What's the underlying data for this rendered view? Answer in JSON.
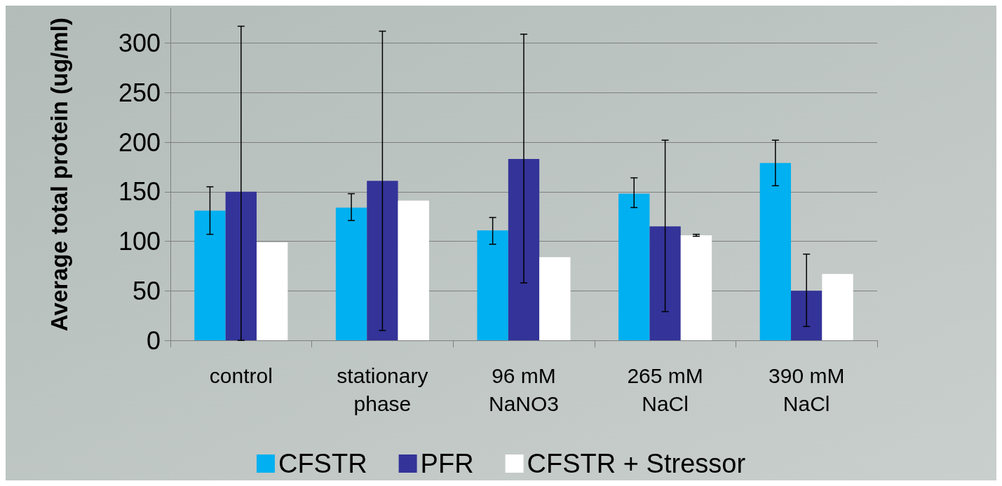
{
  "chart_data": {
    "type": "bar",
    "ylabel": "Average total protein (ug/ml)",
    "categories": [
      "control",
      "stationary phase",
      "96 mM NaNO3",
      "265 mM NaCl",
      "390 mM NaCl"
    ],
    "series": [
      {
        "name": "CFSTR",
        "color": "#00b0f0",
        "values": [
          131,
          134,
          111,
          148,
          179
        ],
        "errors": [
          [
            107,
            155
          ],
          [
            121,
            148
          ],
          [
            97,
            124
          ],
          [
            134,
            164
          ],
          [
            156,
            202
          ]
        ]
      },
      {
        "name": "PFR",
        "color": "#333399",
        "values": [
          150,
          161,
          183,
          115,
          50
        ],
        "errors": [
          [
            0,
            317
          ],
          [
            10,
            312
          ],
          [
            58,
            309
          ],
          [
            29,
            202
          ],
          [
            14,
            87
          ]
        ]
      },
      {
        "name": "CFSTR + Stressor",
        "color": "#ffffff",
        "values": [
          99,
          141,
          84,
          106,
          67
        ],
        "errors": [
          null,
          null,
          null,
          1,
          null
        ]
      }
    ],
    "ylim": [
      0,
      335
    ],
    "yticks": [
      0,
      50,
      100,
      150,
      200,
      250,
      300
    ],
    "grid": "y",
    "legend": "bottom"
  }
}
